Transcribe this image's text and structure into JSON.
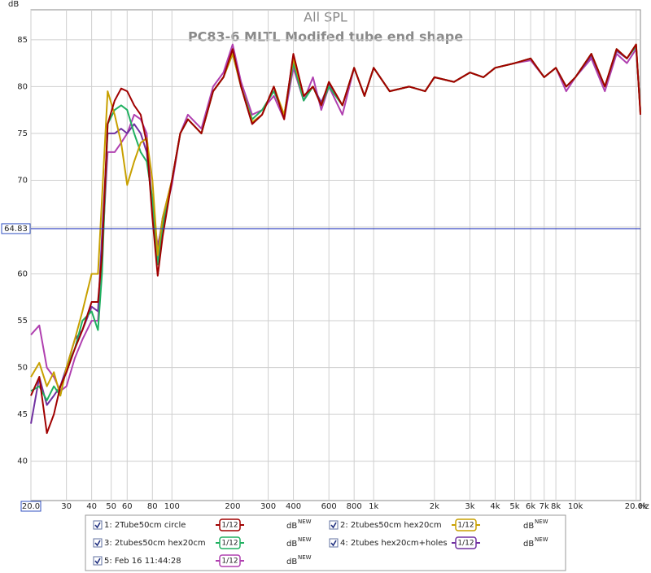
{
  "chart_data": {
    "type": "line",
    "title": "All SPL",
    "subtitle": "PC83-6 MLTL Modifed tube end shape",
    "y_label": "dB",
    "x_label": "Hz",
    "log_x": true,
    "grid": true,
    "cursor_value": 64.83,
    "xlim": [
      20,
      21000
    ],
    "ylim": [
      35.8,
      88.2
    ],
    "xticks": [
      {
        "value": 20,
        "label": "20.0"
      },
      30,
      40,
      50,
      60,
      80,
      100,
      200,
      300,
      400,
      600,
      800,
      {
        "value": 1000,
        "label": "1k"
      },
      {
        "value": 2000,
        "label": "2k"
      },
      {
        "value": 3000,
        "label": "3k"
      },
      {
        "value": 4000,
        "label": "4k"
      },
      {
        "value": 5000,
        "label": "5k"
      },
      {
        "value": 6000,
        "label": "6k"
      },
      {
        "value": 7000,
        "label": "7k"
      },
      {
        "value": 8000,
        "label": "8k"
      },
      {
        "value": 10000,
        "label": "10k"
      },
      {
        "value": 20000,
        "label": "20.0k"
      }
    ],
    "yticks": [
      40,
      45,
      50,
      55,
      60,
      65,
      70,
      75,
      80,
      85
    ],
    "x": [
      20,
      22,
      24,
      26,
      28,
      30,
      33,
      36,
      40,
      43,
      45,
      48,
      52,
      56,
      60,
      65,
      70,
      75,
      80,
      85,
      90,
      100,
      110,
      120,
      140,
      160,
      180,
      200,
      220,
      250,
      280,
      320,
      360,
      400,
      450,
      500,
      550,
      600,
      700,
      800,
      900,
      1000,
      1200,
      1500,
      1800,
      2000,
      2500,
      3000,
      3500,
      4000,
      5000,
      6000,
      7000,
      8000,
      9000,
      10000,
      12000,
      14000,
      16000,
      18000,
      20000,
      21000
    ],
    "series": [
      {
        "name": "1: 2Tube50cm circle",
        "color": "#a00000",
        "smoothing": "1/12",
        "unit": "dB",
        "unit_tag": "NEW",
        "values": [
          47,
          49,
          43,
          45,
          48,
          49.5,
          52,
          54,
          57,
          57,
          62,
          76,
          78.5,
          79.8,
          79.5,
          78,
          77,
          74,
          66,
          59.8,
          64,
          70,
          75,
          76.5,
          75,
          79.5,
          81,
          84,
          80,
          76,
          77,
          80,
          76.5,
          83.5,
          79,
          80,
          78,
          80.5,
          78,
          82,
          79,
          82,
          79.5,
          80,
          79.5,
          81,
          80.5,
          81.5,
          81,
          82,
          82.5,
          83,
          81,
          82,
          80,
          81,
          83.5,
          80,
          84,
          83,
          84.5,
          77
        ]
      },
      {
        "name": "2: 2tubes50cm hex20cm",
        "color": "#c8a000",
        "smoothing": "1/12",
        "unit": "dB",
        "unit_tag": "NEW",
        "values": [
          49,
          50.5,
          48,
          49.5,
          47,
          50,
          53,
          56,
          60,
          60,
          68,
          79.5,
          77,
          74,
          69.5,
          72,
          74,
          74.5,
          70,
          62,
          66,
          70,
          75,
          76.5,
          75,
          79.5,
          81,
          83.5,
          80,
          76.2,
          77,
          80,
          77,
          83,
          79,
          80,
          78,
          80.5,
          78,
          82,
          79,
          82,
          79.5,
          80,
          79.5,
          81,
          80.5,
          81.5,
          81,
          82,
          82.5,
          83,
          81,
          82,
          80,
          81,
          83.5,
          80,
          84,
          83,
          84.5,
          77.2
        ]
      },
      {
        "name": "3: 2tubes50cm hex20cm",
        "color": "#20b060",
        "smoothing": "1/12",
        "unit": "dB",
        "unit_tag": "NEW",
        "values": [
          47.5,
          48,
          46.5,
          48,
          47,
          50,
          52,
          55,
          56,
          54,
          60,
          76,
          77.5,
          78,
          77.5,
          75,
          73,
          72,
          68,
          61,
          65,
          70,
          75,
          76.5,
          75,
          79.5,
          81,
          83.5,
          80,
          76.5,
          77.5,
          79.5,
          77,
          82.5,
          78.5,
          80,
          78,
          80,
          78,
          82,
          79,
          82,
          79.5,
          80,
          79.5,
          81,
          80.5,
          81.5,
          81,
          82,
          82.5,
          83,
          81,
          82,
          80,
          81,
          83.5,
          80,
          84,
          83,
          84.3,
          77.2
        ]
      },
      {
        "name": "4: 2tubes hex20cm+holes",
        "color": "#7030a0",
        "smoothing": "1/12",
        "unit": "dB",
        "unit_tag": "NEW",
        "values": [
          44,
          49,
          46,
          47,
          48,
          50,
          53,
          54,
          56.5,
          56,
          64,
          75,
          75,
          75.5,
          75,
          76,
          75,
          73,
          67,
          62.5,
          66,
          70,
          75,
          76.5,
          75,
          79.5,
          81,
          83.8,
          80,
          76,
          77,
          80,
          76.8,
          83.3,
          79,
          80,
          78.3,
          80.3,
          78,
          82,
          79,
          82,
          79.5,
          80,
          79.5,
          81,
          80.5,
          81.5,
          81,
          82,
          82.5,
          83,
          81,
          82,
          80,
          81,
          83.3,
          80,
          83.8,
          83,
          84.3,
          77.3
        ]
      },
      {
        "name": "5: Feb 16 11:44:28",
        "color": "#b040b0",
        "smoothing": "1/12",
        "unit": "dB",
        "unit_tag": "NEW",
        "values": [
          53.5,
          54.5,
          50,
          49,
          47.5,
          48,
          51,
          53,
          55,
          55,
          62,
          73,
          73,
          74,
          75,
          77,
          76.5,
          75,
          67,
          63,
          65.5,
          69.5,
          75,
          77,
          75.5,
          80,
          81.5,
          84.5,
          80.5,
          77,
          77.5,
          79,
          76.5,
          82,
          78.5,
          81,
          77.5,
          80,
          77,
          82,
          79,
          82,
          79.5,
          80,
          79.5,
          81,
          80.5,
          81.5,
          81,
          82,
          82.5,
          82.8,
          81,
          82,
          79.5,
          81,
          83,
          79.5,
          83.5,
          82.5,
          84,
          77.5
        ]
      }
    ]
  }
}
